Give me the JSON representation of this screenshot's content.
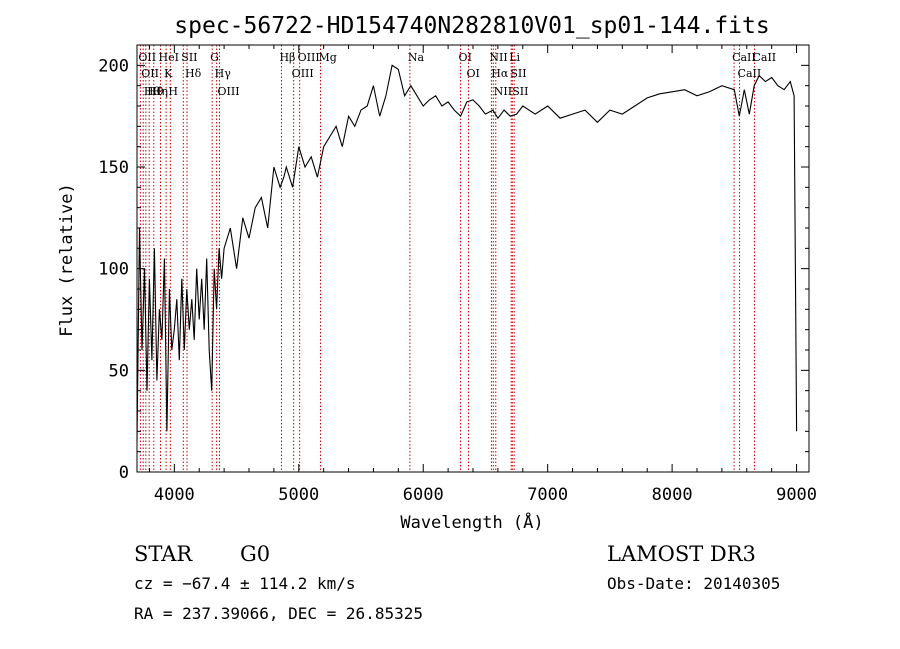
{
  "chart_data": {
    "type": "line",
    "title": "spec-56722-HD154740N282810V01_sp01-144.fits",
    "xlabel": "Wavelength (Å)",
    "ylabel": "Flux (relative)",
    "xlim": [
      3700,
      9100
    ],
    "ylim": [
      0,
      210
    ],
    "xticks": [
      4000,
      5000,
      6000,
      7000,
      8000,
      9000
    ],
    "yticks": [
      0,
      50,
      100,
      150,
      200
    ],
    "grid": false,
    "line_color": "#000000",
    "marker_color": "#cc0000",
    "series": [
      {
        "x": [
          3700,
          3720,
          3740,
          3760,
          3780,
          3800,
          3820,
          3840,
          3860,
          3880,
          3900,
          3920,
          3940,
          3960,
          3980,
          4000,
          4020,
          4040,
          4060,
          4080,
          4100,
          4120,
          4140,
          4160,
          4180,
          4200,
          4220,
          4240,
          4260,
          4280,
          4300,
          4320,
          4340,
          4360,
          4380,
          4400,
          4450,
          4500,
          4550,
          4600,
          4650,
          4700,
          4750,
          4800,
          4850,
          4880,
          4900,
          4950,
          5000,
          5050,
          5100,
          5150,
          5200,
          5250,
          5300,
          5350,
          5400,
          5450,
          5500,
          5550,
          5600,
          5650,
          5700,
          5750,
          5800,
          5850,
          5900,
          5950,
          6000,
          6050,
          6100,
          6150,
          6200,
          6250,
          6300,
          6350,
          6400,
          6450,
          6500,
          6560,
          6600,
          6650,
          6700,
          6750,
          6800,
          6900,
          7000,
          7100,
          7200,
          7300,
          7400,
          7500,
          7600,
          7700,
          7800,
          7900,
          8000,
          8100,
          8200,
          8300,
          8400,
          8500,
          8540,
          8580,
          8620,
          8660,
          8700,
          8750,
          8800,
          8850,
          8900,
          8950,
          8980,
          9000
        ],
        "y": [
          15,
          120,
          60,
          100,
          40,
          95,
          55,
          110,
          45,
          80,
          65,
          105,
          20,
          90,
          60,
          70,
          85,
          55,
          95,
          60,
          90,
          70,
          85,
          65,
          100,
          75,
          95,
          70,
          105,
          60,
          40,
          100,
          80,
          110,
          95,
          110,
          120,
          100,
          125,
          115,
          130,
          135,
          120,
          150,
          140,
          145,
          150,
          140,
          160,
          150,
          155,
          145,
          160,
          165,
          170,
          160,
          175,
          170,
          178,
          180,
          190,
          175,
          185,
          200,
          198,
          185,
          190,
          185,
          180,
          183,
          185,
          180,
          182,
          178,
          175,
          182,
          183,
          180,
          176,
          178,
          174,
          178,
          175,
          176,
          180,
          176,
          180,
          174,
          176,
          178,
          172,
          178,
          176,
          180,
          184,
          186,
          187,
          188,
          185,
          187,
          190,
          188,
          175,
          188,
          176,
          190,
          195,
          192,
          194,
          190,
          188,
          192,
          185,
          20
        ]
      }
    ],
    "line_markers": [
      {
        "wl": 3727,
        "label": "OII"
      },
      {
        "wl": 3750,
        "label": "OII"
      },
      {
        "wl": 3771,
        "label": "Hθ"
      },
      {
        "wl": 3798,
        "label": "Hθ"
      },
      {
        "wl": 3835,
        "label": "Hη"
      },
      {
        "wl": 3889,
        "label": "HeI"
      },
      {
        "wl": 3934,
        "label": "K"
      },
      {
        "wl": 3968,
        "label": "H"
      },
      {
        "wl": 4072,
        "label": "SII"
      },
      {
        "wl": 4102,
        "label": "Hδ"
      },
      {
        "wl": 4304,
        "label": "G"
      },
      {
        "wl": 4340,
        "label": "Hγ"
      },
      {
        "wl": 4363,
        "label": "OIII"
      },
      {
        "wl": 4861,
        "label": "Hβ"
      },
      {
        "wl": 4959,
        "label": "OIII"
      },
      {
        "wl": 5007,
        "label": "OIII"
      },
      {
        "wl": 5175,
        "label": "Mg"
      },
      {
        "wl": 5893,
        "label": "Na"
      },
      {
        "wl": 6300,
        "label": "OI"
      },
      {
        "wl": 6364,
        "label": "OI"
      },
      {
        "wl": 6548,
        "label": "NII"
      },
      {
        "wl": 6563,
        "label": "Hα"
      },
      {
        "wl": 6583,
        "label": "NII"
      },
      {
        "wl": 6707,
        "label": "Li"
      },
      {
        "wl": 6716,
        "label": "SII"
      },
      {
        "wl": 6731,
        "label": "SII"
      },
      {
        "wl": 8498,
        "label": "CaII"
      },
      {
        "wl": 8542,
        "label": "CaII"
      },
      {
        "wl": 8662,
        "label": "CaII"
      }
    ]
  },
  "info": {
    "object_class": "STAR",
    "subclass": "G0",
    "cz": "cz = −67.4 ± 114.2 km/s",
    "coords": "RA = 237.39066, DEC =  26.85325",
    "survey": "LAMOST DR3",
    "obs_date": "Obs-Date: 20140305"
  }
}
